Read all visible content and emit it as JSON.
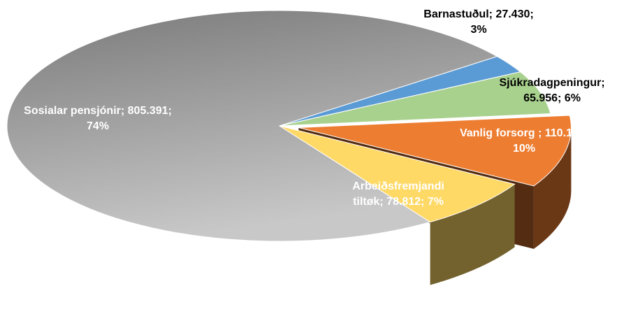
{
  "chart_data": {
    "type": "pie3d",
    "categories": [
      "Sosialar pensjónir;",
      "Barnastuðul;",
      "Sjúkradagpeningur;",
      "Vanlig forsorg ;",
      "Arbeiðsfremjandi tiltøk;"
    ],
    "values": [
      805391,
      27430,
      65956,
      110140,
      78812
    ],
    "value_labels": [
      "805.391;",
      "27.430;",
      "65.956;",
      "110.140;",
      "78.812;"
    ],
    "percent_labels": [
      "74%",
      "3%",
      "6%",
      "10%",
      "7%"
    ],
    "colors": [
      "#a6a6a6",
      "#5b9bd5",
      "#a9d18e",
      "#ed7d31",
      "#ffd966"
    ],
    "exploded": [
      false,
      false,
      false,
      true,
      false
    ]
  }
}
